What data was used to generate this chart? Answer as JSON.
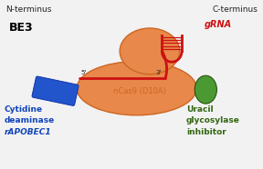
{
  "background_color": "#f2f2f2",
  "n_terminus_label": "N-terminus",
  "c_terminus_label": "C-terminus",
  "be3_label": "BE3",
  "grna_label": "gRNA",
  "ncas9_label": "nCas9 (D10A)",
  "cytidine_line1": "Cytidine",
  "cytidine_line2": "deaminase",
  "cytidine_line3": "rAPOBEC1",
  "uracil_line1": "Uracil",
  "uracil_line2": "glycosylase",
  "uracil_line3": "inhibitor",
  "five_prime": "5'",
  "three_prime": "3'",
  "cas9_color": "#E8884A",
  "cas9_edge_color": "#CC6622",
  "grna_color": "#CC1111",
  "blue_domain_color": "#2255CC",
  "green_domain_color": "#4A9933",
  "linker_color": "#B0B0B0",
  "text_blue": "#1144BB",
  "text_green": "#336611",
  "text_dark": "#222222"
}
